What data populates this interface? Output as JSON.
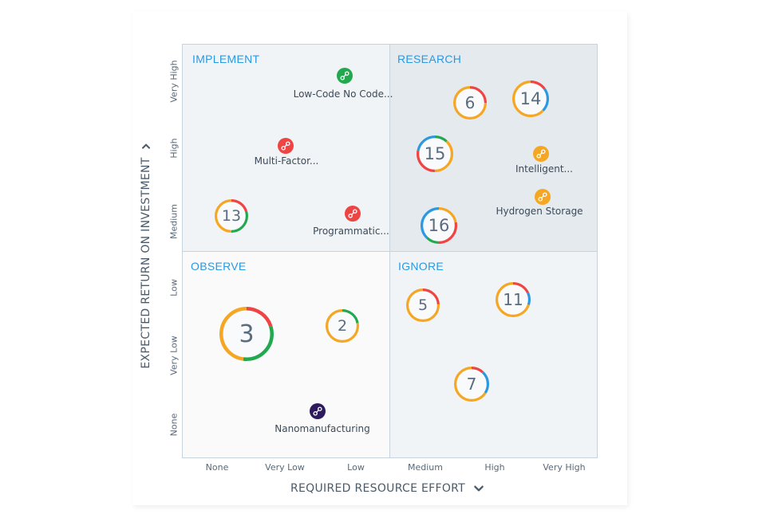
{
  "quadrants": {
    "implement": "IMPLEMENT",
    "research": "RESEARCH",
    "observe": "OBSERVE",
    "ignore": "IGNORE"
  },
  "axes": {
    "y_title": "EXPECTED RETURN ON INVESTMENT",
    "x_title": "REQUIRED RESOURCE EFFORT",
    "y_ticks": [
      "Very High",
      "High",
      "Medium",
      "Low",
      "Very Low",
      "None"
    ],
    "x_ticks": [
      "None",
      "Very Low",
      "Low",
      "Medium",
      "High",
      "Very High"
    ]
  },
  "colors": {
    "accent": "#2b98e0",
    "red": "#ef4444",
    "orange": "#f5a623",
    "green": "#22a94f",
    "blue": "#2b98e0",
    "navy": "#2d1b5e"
  },
  "bubbles": [
    {
      "count": "6",
      "effort": "High",
      "return": "Very High"
    },
    {
      "count": "14",
      "effort": "Very High",
      "return": "Very High"
    },
    {
      "count": "15",
      "effort": "Medium",
      "return": "High"
    },
    {
      "count": "16",
      "effort": "Medium",
      "return": "Medium"
    },
    {
      "count": "13",
      "effort": "None",
      "return": "Medium"
    },
    {
      "count": "3",
      "effort": "None",
      "return": "Very Low"
    },
    {
      "count": "2",
      "effort": "Low",
      "return": "Low"
    },
    {
      "count": "5",
      "effort": "Medium",
      "return": "Low"
    },
    {
      "count": "11",
      "effort": "High",
      "return": "Low"
    },
    {
      "count": "7",
      "effort": "High",
      "return": "Very Low"
    }
  ],
  "technologies": [
    {
      "label": "Low-Code No Code...",
      "color": "green",
      "icon": "link-icon"
    },
    {
      "label": "Multi-Factor...",
      "color": "red",
      "icon": "link-icon"
    },
    {
      "label": "Programmatic...",
      "color": "red",
      "icon": "link-icon"
    },
    {
      "label": "Intelligent...",
      "color": "orange",
      "icon": "link-icon"
    },
    {
      "label": "Hydrogen Storage",
      "color": "orange",
      "icon": "link-icon"
    },
    {
      "label": "Nanomanufacturing",
      "color": "navy",
      "icon": "link-icon"
    }
  ],
  "icons": {
    "y_axis_toggle": "chevron-down-icon",
    "x_axis_toggle": "chevron-down-icon"
  }
}
